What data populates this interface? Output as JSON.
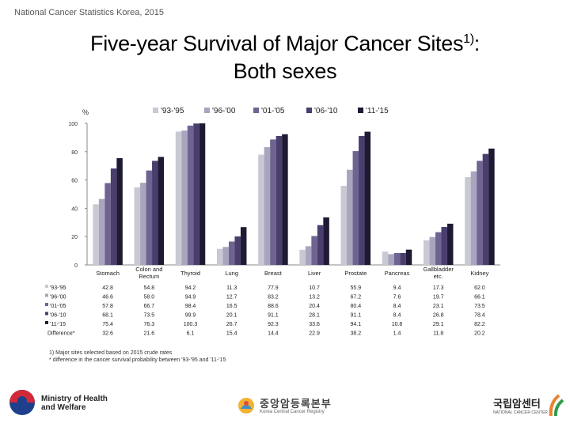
{
  "header": "National Cancer Statistics Korea, 2015",
  "title_line1": "Five-year Survival of Major Cancer Sites",
  "title_sup": "1)",
  "title_colon": ":",
  "title_line2": "Both sexes",
  "chart_data": {
    "type": "bar",
    "ylabel": "%",
    "ylim": [
      0,
      100
    ],
    "yticks": [
      0,
      20,
      40,
      60,
      80,
      100
    ],
    "categories": [
      "Stomach",
      "Colon and Rectum",
      "Thyroid",
      "Lung",
      "Breast",
      "Liver",
      "Prostate",
      "Pancreas",
      "Gallbladder etc.",
      "Kidney"
    ],
    "category_lines": [
      [
        "Stomach"
      ],
      [
        "Colon and",
        "Rectum"
      ],
      [
        "Thyroid"
      ],
      [
        "Lung"
      ],
      [
        "Breast"
      ],
      [
        "Liver"
      ],
      [
        "Prostate"
      ],
      [
        "Pancreas"
      ],
      [
        "Gallbladder",
        "etc."
      ],
      [
        "Kidney"
      ]
    ],
    "series": [
      {
        "name": "'93-'95",
        "color": "#c9c9d4",
        "values": [
          "42.8",
          "54.8",
          "94.2",
          "11.3",
          "77.9",
          "10.7",
          "55.9",
          "9.4",
          "17.3",
          "62.0"
        ]
      },
      {
        "name": "'96-'00",
        "color": "#a9a5be",
        "values": [
          "46.6",
          "58.0",
          "94.9",
          "12.7",
          "83.2",
          "13.2",
          "67.2",
          "7.6",
          "19.7",
          "66.1"
        ]
      },
      {
        "name": "'01-'05",
        "color": "#6f6491",
        "values": [
          "57.8",
          "66.7",
          "98.4",
          "16.5",
          "88.6",
          "20.4",
          "80.4",
          "8.4",
          "23.1",
          "73.5"
        ]
      },
      {
        "name": "'06-'10",
        "color": "#4a3e6e",
        "values": [
          "68.1",
          "73.5",
          "99.9",
          "20.1",
          "91.1",
          "28.1",
          "91.1",
          "8.4",
          "26.8",
          "78.4"
        ]
      },
      {
        "name": "'11-'15",
        "color": "#1f1a33",
        "values": [
          "75.4",
          "76.3",
          "100.3",
          "26.7",
          "92.3",
          "33.6",
          "94.1",
          "10.8",
          "29.1",
          "82.2"
        ]
      }
    ],
    "difference_label": "Difference*",
    "difference": [
      "32.6",
      "21.6",
      "6.1",
      "15.4",
      "14.4",
      "22.9",
      "38.2",
      "1.4",
      "11.8",
      "20.2"
    ]
  },
  "notes": [
    "1) Major sites selected based on 2015 crude rates",
    "* difference in the cancer survival probability between '93-'95 and '11-'15"
  ],
  "logos": {
    "mohw_line1": "Ministry of Health",
    "mohw_line2": "and Welfare",
    "kccr_kr": "중앙암등록본부",
    "kccr_en": "Korea Central Cancer Registry",
    "ncc_kr": "국립암센터",
    "ncc_en": "NATIONAL CANCER CENTER"
  }
}
